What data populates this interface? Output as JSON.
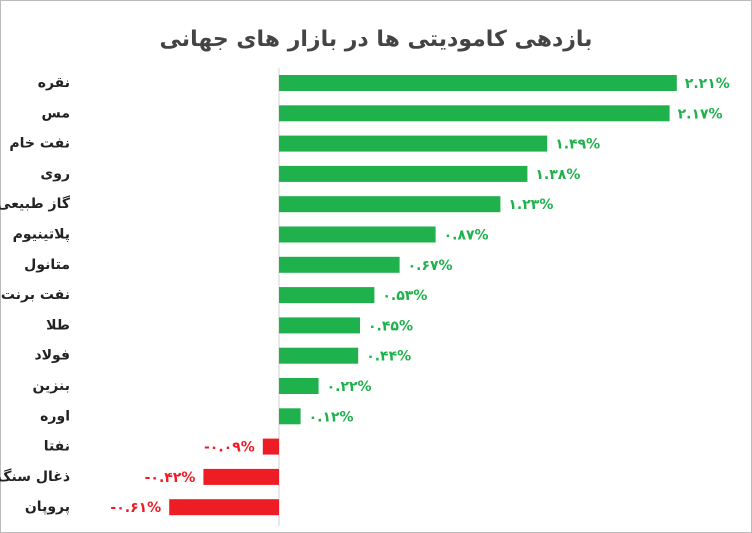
{
  "chart_data": {
    "type": "bar",
    "orientation": "horizontal",
    "title": "بازدهی کامودیتی ها  در بازار های جهانی",
    "categories": [
      "نقره",
      "مس",
      "نفت خام",
      "روی",
      "گاز طبیعی",
      "پلاتینیوم",
      "متانول",
      "نفت برنت",
      "طلا",
      "فولاد",
      "بنزین",
      "اوره",
      "نفتا",
      "ذغال سنگ",
      "پروپان"
    ],
    "values": [
      2.21,
      2.17,
      1.49,
      1.38,
      1.23,
      0.87,
      0.67,
      0.53,
      0.45,
      0.44,
      0.22,
      0.12,
      -0.09,
      -0.42,
      -0.61
    ],
    "value_labels": [
      "۲.۲۱%",
      "۲.۱۷%",
      "۱.۴۹%",
      "۱.۳۸%",
      "۱.۲۳%",
      "۰.۸۷%",
      "۰.۶۷%",
      "۰.۵۳%",
      "۰.۴۵%",
      "۰.۴۴%",
      "۰.۲۲%",
      "۰.۱۲%",
      "-۰.۰۹%",
      "-۰.۴۲%",
      "-۰.۶۱%"
    ],
    "positive_color": "#1fb14c",
    "negative_color": "#ee1c24"
  }
}
